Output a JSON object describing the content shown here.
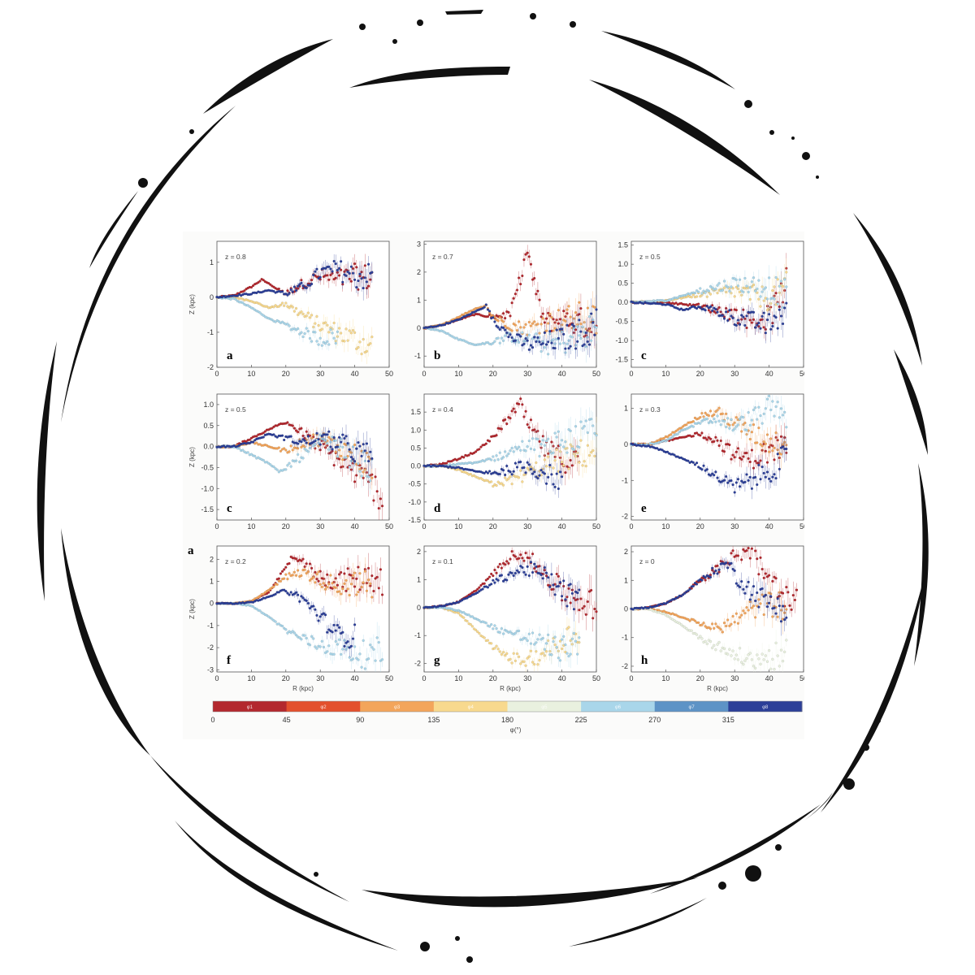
{
  "colors": {
    "bin_colors": [
      "#b3282e",
      "#e3502d",
      "#f3a55b",
      "#f8d98e",
      "#e9f1df",
      "#a9d6ea",
      "#5d93c6",
      "#2c3f98"
    ],
    "frame": "#111111"
  },
  "figure": {
    "extra_label": "a",
    "x_axis_label": "R (kpc)",
    "y_axis_label": "Z (kpc)",
    "colorbar": {
      "label": "φ(°)",
      "ticks": [
        "0",
        "45",
        "90",
        "135",
        "180",
        "225",
        "270",
        "315"
      ],
      "segment_labels": [
        "φ1",
        "φ2",
        "φ3",
        "φ4",
        "φ5",
        "φ6",
        "φ7",
        "φ8"
      ]
    }
  },
  "chart_data": [
    {
      "type": "scatter",
      "panel": "a",
      "title": "z = 0.8",
      "xlim": [
        0,
        50
      ],
      "ylim": [
        -2,
        1.6
      ],
      "yticks": [
        "-2",
        "-1",
        "0",
        "1"
      ],
      "xticks": [
        "0",
        "10",
        "20",
        "30",
        "40",
        "50"
      ],
      "series_approx": [
        {
          "bin": 1,
          "x": [
            0,
            5,
            10,
            13,
            15,
            18,
            20,
            25,
            30,
            35,
            40,
            45
          ],
          "y": [
            0,
            0.05,
            0.3,
            0.5,
            0.4,
            0.2,
            0.1,
            0.4,
            0.6,
            0.5,
            0.6,
            0.55
          ]
        },
        {
          "bin": 4,
          "x": [
            0,
            5,
            10,
            15,
            20,
            25,
            30,
            35,
            40,
            45
          ],
          "y": [
            0,
            0,
            -0.1,
            -0.3,
            -0.2,
            -0.5,
            -0.8,
            -1.0,
            -1.2,
            -1.4
          ]
        },
        {
          "bin": 6,
          "x": [
            0,
            5,
            10,
            15,
            20,
            25,
            30,
            35
          ],
          "y": [
            0,
            -0.05,
            -0.3,
            -0.6,
            -0.8,
            -1.0,
            -1.2,
            -1.1
          ]
        },
        {
          "bin": 8,
          "x": [
            0,
            5,
            10,
            15,
            20,
            25,
            30,
            35,
            40,
            45
          ],
          "y": [
            0,
            0.05,
            0.1,
            0.2,
            0.1,
            0.3,
            0.7,
            0.8,
            0.6,
            0.6
          ]
        }
      ]
    },
    {
      "type": "scatter",
      "panel": "b",
      "title": "z = 0.7",
      "xlim": [
        0,
        50
      ],
      "ylim": [
        -1.4,
        3.1
      ],
      "yticks": [
        "-1",
        "0",
        "1",
        "2",
        "3"
      ],
      "xticks": [
        "0",
        "10",
        "20",
        "30",
        "40",
        "50"
      ],
      "series_approx": [
        {
          "bin": 1,
          "x": [
            0,
            5,
            10,
            15,
            20,
            25,
            28,
            30,
            32,
            35,
            40,
            45,
            50
          ],
          "y": [
            0,
            0.1,
            0.3,
            0.5,
            0.4,
            0.5,
            1.8,
            2.8,
            1.5,
            0.2,
            0.3,
            0.2,
            0.1
          ]
        },
        {
          "bin": 3,
          "x": [
            0,
            5,
            10,
            15,
            18,
            20,
            25,
            30,
            35,
            40,
            45,
            50
          ],
          "y": [
            0,
            0.1,
            0.4,
            0.7,
            0.8,
            0.4,
            0.1,
            0.0,
            0.2,
            0.3,
            0.4,
            0.2
          ]
        },
        {
          "bin": 6,
          "x": [
            0,
            5,
            10,
            15,
            20,
            25,
            30,
            35,
            40,
            45,
            50
          ],
          "y": [
            0,
            -0.1,
            -0.4,
            -0.6,
            -0.5,
            -0.3,
            -0.4,
            -0.6,
            -0.5,
            -0.3,
            0.0
          ]
        },
        {
          "bin": 8,
          "x": [
            0,
            5,
            10,
            15,
            18,
            20,
            25,
            30,
            35,
            40,
            45,
            50
          ],
          "y": [
            0,
            0.1,
            0.3,
            0.6,
            0.8,
            0.3,
            -0.3,
            -0.6,
            -0.5,
            -0.4,
            -0.2,
            0.1
          ]
        }
      ]
    },
    {
      "type": "scatter",
      "panel": "c",
      "title": "z = 0.5",
      "xlim": [
        0,
        50
      ],
      "ylim": [
        -1.7,
        1.6
      ],
      "yticks": [
        "-1.5",
        "-1.0",
        "-0.5",
        "0.0",
        "0.5",
        "1.0",
        "1.5"
      ],
      "xticks": [
        "0",
        "10",
        "20",
        "30",
        "40",
        "50"
      ],
      "series_approx": [
        {
          "bin": 1,
          "x": [
            0,
            10,
            20,
            30,
            35,
            40,
            45
          ],
          "y": [
            0,
            0,
            -0.1,
            -0.3,
            -0.5,
            -0.4,
            0.5
          ]
        },
        {
          "bin": 4,
          "x": [
            0,
            10,
            20,
            30,
            40,
            45
          ],
          "y": [
            0,
            0.05,
            0.2,
            0.3,
            0.1,
            0.4
          ]
        },
        {
          "bin": 6,
          "x": [
            0,
            10,
            20,
            30,
            40,
            45
          ],
          "y": [
            0,
            0.05,
            0.3,
            0.5,
            0.4,
            0.2
          ]
        },
        {
          "bin": 8,
          "x": [
            0,
            10,
            15,
            20,
            30,
            40,
            45
          ],
          "y": [
            0,
            -0.05,
            -0.2,
            -0.1,
            -0.4,
            -0.6,
            -0.2
          ]
        }
      ]
    },
    {
      "type": "scatter",
      "panel": "c",
      "title": "z = 0.5",
      "xlim": [
        0,
        50
      ],
      "ylim": [
        -1.75,
        1.25
      ],
      "yticks": [
        "-1.5",
        "-1.0",
        "-0.5",
        "0.0",
        "0.5",
        "1.0"
      ],
      "xticks": [
        "0",
        "10",
        "20",
        "30",
        "40",
        "50"
      ],
      "series_approx": [
        {
          "bin": 1,
          "x": [
            0,
            5,
            10,
            15,
            20,
            25,
            30,
            35,
            40,
            45,
            48
          ],
          "y": [
            0,
            0,
            0.2,
            0.4,
            0.6,
            0.3,
            0.0,
            -0.3,
            -0.6,
            -0.9,
            -1.2
          ]
        },
        {
          "bin": 3,
          "x": [
            0,
            5,
            10,
            15,
            20,
            25,
            30,
            35,
            40,
            45
          ],
          "y": [
            0,
            0,
            0.1,
            0.0,
            -0.1,
            0.1,
            0.2,
            0.0,
            -0.2,
            -0.5
          ]
        },
        {
          "bin": 6,
          "x": [
            0,
            5,
            10,
            15,
            18,
            20,
            25,
            30,
            35,
            40,
            45
          ],
          "y": [
            0,
            0,
            -0.2,
            -0.4,
            -0.6,
            -0.5,
            -0.2,
            0.1,
            0.0,
            -0.3,
            -0.6
          ]
        },
        {
          "bin": 8,
          "x": [
            0,
            5,
            10,
            15,
            20,
            25,
            30,
            35,
            40,
            45
          ],
          "y": [
            0,
            0,
            0.1,
            0.3,
            0.2,
            0.1,
            0.2,
            0.1,
            -0.1,
            -0.3
          ]
        }
      ]
    },
    {
      "type": "scatter",
      "panel": "d",
      "title": "z = 0.4",
      "xlim": [
        0,
        50
      ],
      "ylim": [
        -1.5,
        2.0
      ],
      "yticks": [
        "-1.5",
        "-1.0",
        "-0.5",
        "0.0",
        "0.5",
        "1.0",
        "1.5"
      ],
      "xticks": [
        "0",
        "10",
        "20",
        "30",
        "40",
        "50"
      ],
      "series_approx": [
        {
          "bin": 1,
          "x": [
            0,
            5,
            10,
            15,
            20,
            25,
            28,
            30,
            35,
            40,
            45
          ],
          "y": [
            0,
            0.05,
            0.2,
            0.4,
            0.8,
            1.4,
            1.7,
            1.2,
            0.5,
            0.2,
            0.1
          ]
        },
        {
          "bin": 4,
          "x": [
            0,
            5,
            10,
            15,
            20,
            25,
            30,
            35,
            40,
            45,
            50
          ],
          "y": [
            0,
            0,
            -0.1,
            -0.3,
            -0.5,
            -0.4,
            -0.2,
            0.0,
            0.2,
            0.3,
            0.5
          ]
        },
        {
          "bin": 6,
          "x": [
            0,
            5,
            10,
            15,
            20,
            25,
            30,
            35,
            40,
            45,
            50
          ],
          "y": [
            0,
            0,
            0.05,
            0.1,
            0.2,
            0.4,
            0.6,
            0.5,
            0.7,
            0.8,
            0.9
          ]
        },
        {
          "bin": 8,
          "x": [
            0,
            5,
            10,
            15,
            20,
            25,
            30,
            35,
            40
          ],
          "y": [
            0,
            0,
            -0.05,
            -0.15,
            -0.2,
            -0.1,
            0.0,
            -0.2,
            -0.4
          ]
        }
      ]
    },
    {
      "type": "scatter",
      "panel": "e",
      "title": "z = 0.3",
      "xlim": [
        0,
        50
      ],
      "ylim": [
        -2.1,
        1.4
      ],
      "yticks": [
        "-2",
        "-1",
        "0",
        "1"
      ],
      "xticks": [
        "0",
        "10",
        "20",
        "30",
        "40",
        "50"
      ],
      "series_approx": [
        {
          "bin": 1,
          "x": [
            0,
            5,
            10,
            15,
            20,
            25,
            30,
            35,
            40,
            45
          ],
          "y": [
            0,
            0,
            0.1,
            0.2,
            0.3,
            0.1,
            -0.3,
            -0.4,
            -0.2,
            0.0
          ]
        },
        {
          "bin": 3,
          "x": [
            0,
            5,
            10,
            15,
            20,
            25,
            30,
            35,
            40,
            45
          ],
          "y": [
            0,
            0,
            0.2,
            0.5,
            0.8,
            0.9,
            0.6,
            0.3,
            0.1,
            0.0
          ]
        },
        {
          "bin": 6,
          "x": [
            0,
            5,
            10,
            15,
            20,
            25,
            30,
            35,
            40,
            45
          ],
          "y": [
            0,
            0,
            0.1,
            0.4,
            0.6,
            0.7,
            0.5,
            0.7,
            1.0,
            0.8
          ]
        },
        {
          "bin": 8,
          "x": [
            0,
            5,
            10,
            15,
            20,
            25,
            30,
            35,
            40,
            45
          ],
          "y": [
            0,
            -0.05,
            -0.2,
            -0.4,
            -0.6,
            -0.9,
            -1.2,
            -1.0,
            -0.7,
            -0.4
          ]
        }
      ]
    },
    {
      "type": "scatter",
      "panel": "f",
      "title": "z = 0.2",
      "xlim": [
        0,
        50
      ],
      "ylim": [
        -3.1,
        2.6
      ],
      "yticks": [
        "-3",
        "-2",
        "-1",
        "0",
        "1",
        "2"
      ],
      "xticks": [
        "0",
        "10",
        "20",
        "30",
        "40",
        "50"
      ],
      "series_approx": [
        {
          "bin": 1,
          "x": [
            0,
            5,
            10,
            15,
            20,
            22,
            25,
            30,
            35,
            40,
            45,
            48
          ],
          "y": [
            0,
            0,
            0.1,
            0.5,
            1.6,
            2.2,
            1.8,
            1.2,
            1.0,
            1.1,
            1.2,
            1.1
          ]
        },
        {
          "bin": 3,
          "x": [
            0,
            5,
            10,
            15,
            20,
            25,
            30,
            35,
            40,
            45
          ],
          "y": [
            0,
            0,
            0.1,
            0.6,
            1.2,
            1.4,
            1.1,
            0.8,
            0.9,
            0.8
          ]
        },
        {
          "bin": 6,
          "x": [
            0,
            5,
            10,
            15,
            20,
            25,
            30,
            35,
            40,
            45,
            48
          ],
          "y": [
            0,
            0,
            -0.1,
            -0.6,
            -1.2,
            -1.6,
            -1.9,
            -2.0,
            -2.2,
            -2.4,
            -2.1
          ]
        },
        {
          "bin": 8,
          "x": [
            0,
            5,
            10,
            15,
            20,
            25,
            30,
            35,
            40
          ],
          "y": [
            0,
            0,
            0.05,
            0.3,
            0.6,
            0.2,
            -0.6,
            -1.4,
            -1.5
          ]
        }
      ]
    },
    {
      "type": "scatter",
      "panel": "g",
      "title": "z = 0.1",
      "xlim": [
        0,
        50
      ],
      "ylim": [
        -2.3,
        2.2
      ],
      "yticks": [
        "-2",
        "-1",
        "0",
        "1",
        "2"
      ],
      "xticks": [
        "0",
        "10",
        "20",
        "30",
        "40",
        "50"
      ],
      "series_approx": [
        {
          "bin": 1,
          "x": [
            0,
            5,
            10,
            15,
            20,
            25,
            28,
            30,
            35,
            40,
            45,
            50
          ],
          "y": [
            0,
            0.05,
            0.2,
            0.6,
            1.2,
            1.8,
            2.0,
            1.8,
            1.2,
            0.6,
            0.3,
            0.0
          ]
        },
        {
          "bin": 4,
          "x": [
            0,
            5,
            10,
            15,
            20,
            25,
            30,
            35,
            40,
            45
          ],
          "y": [
            0,
            0,
            -0.2,
            -0.8,
            -1.4,
            -1.8,
            -1.9,
            -1.6,
            -1.2,
            -0.8
          ]
        },
        {
          "bin": 6,
          "x": [
            0,
            5,
            10,
            15,
            20,
            25,
            30,
            35,
            40,
            45
          ],
          "y": [
            0,
            0,
            -0.1,
            -0.4,
            -0.7,
            -0.9,
            -1.1,
            -1.3,
            -1.5,
            -1.2
          ]
        },
        {
          "bin": 8,
          "x": [
            0,
            5,
            10,
            15,
            20,
            25,
            30,
            35,
            40,
            45
          ],
          "y": [
            0,
            0.05,
            0.2,
            0.5,
            0.9,
            1.2,
            1.4,
            1.1,
            0.6,
            0.2
          ]
        }
      ]
    },
    {
      "type": "scatter",
      "panel": "h",
      "title": "z = 0",
      "xlim": [
        0,
        50
      ],
      "ylim": [
        -2.2,
        2.2
      ],
      "yticks": [
        "-2",
        "-1",
        "0",
        "1",
        "2"
      ],
      "xticks": [
        "0",
        "10",
        "20",
        "30",
        "40",
        "50"
      ],
      "series_approx": [
        {
          "bin": 1,
          "x": [
            0,
            5,
            10,
            15,
            20,
            25,
            30,
            35,
            40,
            45,
            48
          ],
          "y": [
            0,
            0.05,
            0.2,
            0.5,
            1.0,
            1.4,
            1.9,
            2.1,
            0.8,
            0.3,
            0.2
          ]
        },
        {
          "bin": 3,
          "x": [
            0,
            5,
            10,
            15,
            20,
            25,
            30,
            35,
            40,
            45
          ],
          "y": [
            0,
            0,
            -0.1,
            -0.3,
            -0.5,
            -0.7,
            -0.4,
            0.0,
            0.2,
            0.1
          ]
        },
        {
          "bin": 5,
          "x": [
            0,
            5,
            10,
            15,
            20,
            25,
            30,
            35,
            40,
            45
          ],
          "y": [
            0,
            0,
            -0.2,
            -0.6,
            -1.0,
            -1.3,
            -1.6,
            -1.8,
            -1.7,
            -1.6
          ]
        },
        {
          "bin": 8,
          "x": [
            0,
            5,
            10,
            15,
            20,
            25,
            28,
            30,
            35,
            40,
            45
          ],
          "y": [
            0,
            0.05,
            0.2,
            0.5,
            1.0,
            1.4,
            1.6,
            1.2,
            0.6,
            0.2,
            0.0
          ]
        }
      ]
    }
  ]
}
